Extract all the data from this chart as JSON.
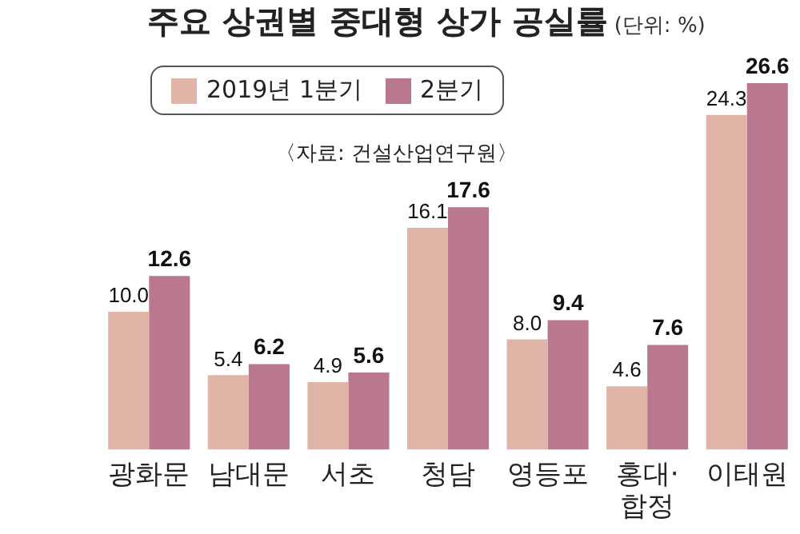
{
  "chart_data": {
    "type": "bar",
    "title": "주요 상권별 중대형 상가 공실률",
    "subtitle": "(단위: %)",
    "annotations": [
      "〈자료: 건설산업연구원〉"
    ],
    "categories": [
      "광화문",
      "남대문",
      "서초",
      "청담",
      "영등포",
      "홍대·합정",
      "이태원"
    ],
    "series": [
      {
        "name": "2019년 1분기",
        "color": "#e0b5a8",
        "values": [
          10.0,
          5.4,
          4.9,
          16.1,
          8.0,
          4.6,
          24.3
        ],
        "value_labels": [
          "10.0",
          "5.4",
          "4.9",
          "16.1",
          "8.0",
          "4.6",
          "24.3"
        ]
      },
      {
        "name": "2분기",
        "color": "#b9788e",
        "values": [
          12.6,
          6.2,
          5.6,
          17.6,
          9.4,
          7.6,
          26.6
        ],
        "value_labels": [
          "12.6",
          "6.2",
          "5.6",
          "17.6",
          "9.4",
          "7.6",
          "26.6"
        ]
      }
    ],
    "ylim": [
      0,
      28
    ],
    "legend": "top left",
    "grid": false
  }
}
